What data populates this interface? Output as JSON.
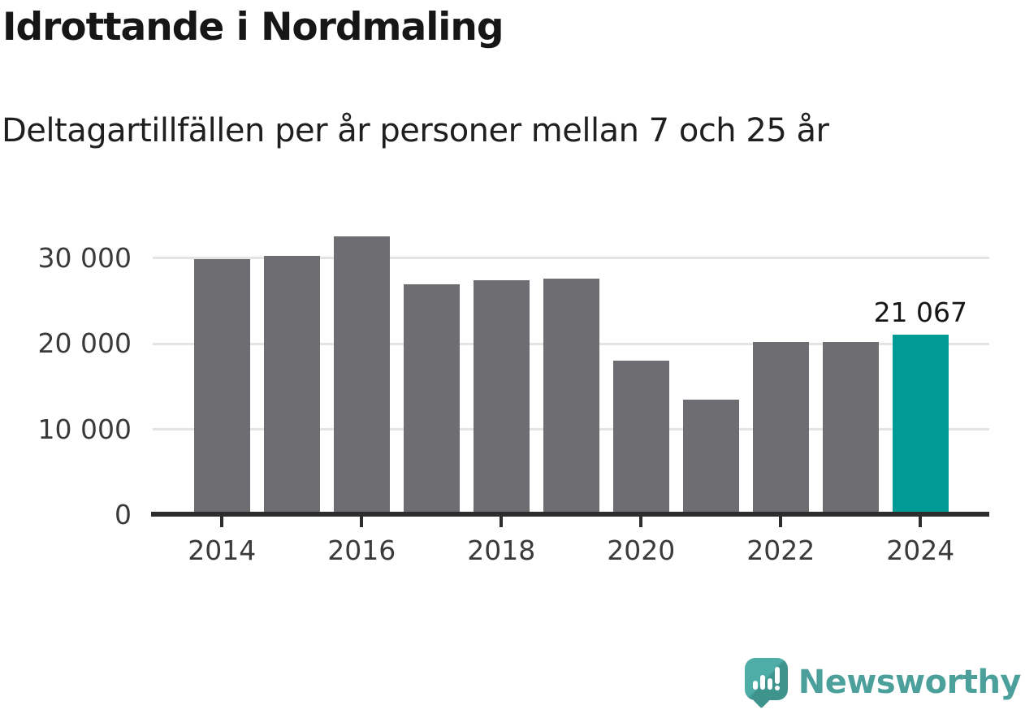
{
  "header": {
    "title": "Idrottande i Nordmaling",
    "subtitle": "Deltagartillfällen per år personer mellan 7 och 25 år"
  },
  "chart_data": {
    "type": "bar",
    "title": "Idrottande i Nordmaling",
    "subtitle": "Deltagartillfällen per år personer mellan 7 och 25 år",
    "categories": [
      "2014",
      "2015",
      "2016",
      "2017",
      "2018",
      "2019",
      "2020",
      "2021",
      "2022",
      "2023",
      "2024"
    ],
    "values": [
      29900,
      30200,
      32500,
      26900,
      27400,
      27600,
      18000,
      13500,
      20200,
      20200,
      21067
    ],
    "highlight_index": 10,
    "highlight_value_label": "21 067",
    "y_ticks": [
      {
        "value": 0,
        "label": "0"
      },
      {
        "value": 10000,
        "label": "10 000"
      },
      {
        "value": 20000,
        "label": "20 000"
      },
      {
        "value": 30000,
        "label": "30 000"
      }
    ],
    "x_tick_labels": [
      "2014",
      "2016",
      "2018",
      "2020",
      "2022",
      "2024"
    ],
    "ylim": [
      0,
      33600
    ],
    "grid": "horizontal-behind-bars",
    "legend": "none",
    "colors": {
      "bar": "#6d6d72",
      "highlight": "#009b94",
      "gridline": "#e4e4e4",
      "axis": "#2d2d2d",
      "axis_text": "#3a3a3a",
      "value_label_text": "#161616"
    }
  },
  "branding": {
    "logo_text": "Newsworthy",
    "logo_color": "#4ba09b",
    "icon": "newsworthy-speech-bubble-chart-icon"
  }
}
